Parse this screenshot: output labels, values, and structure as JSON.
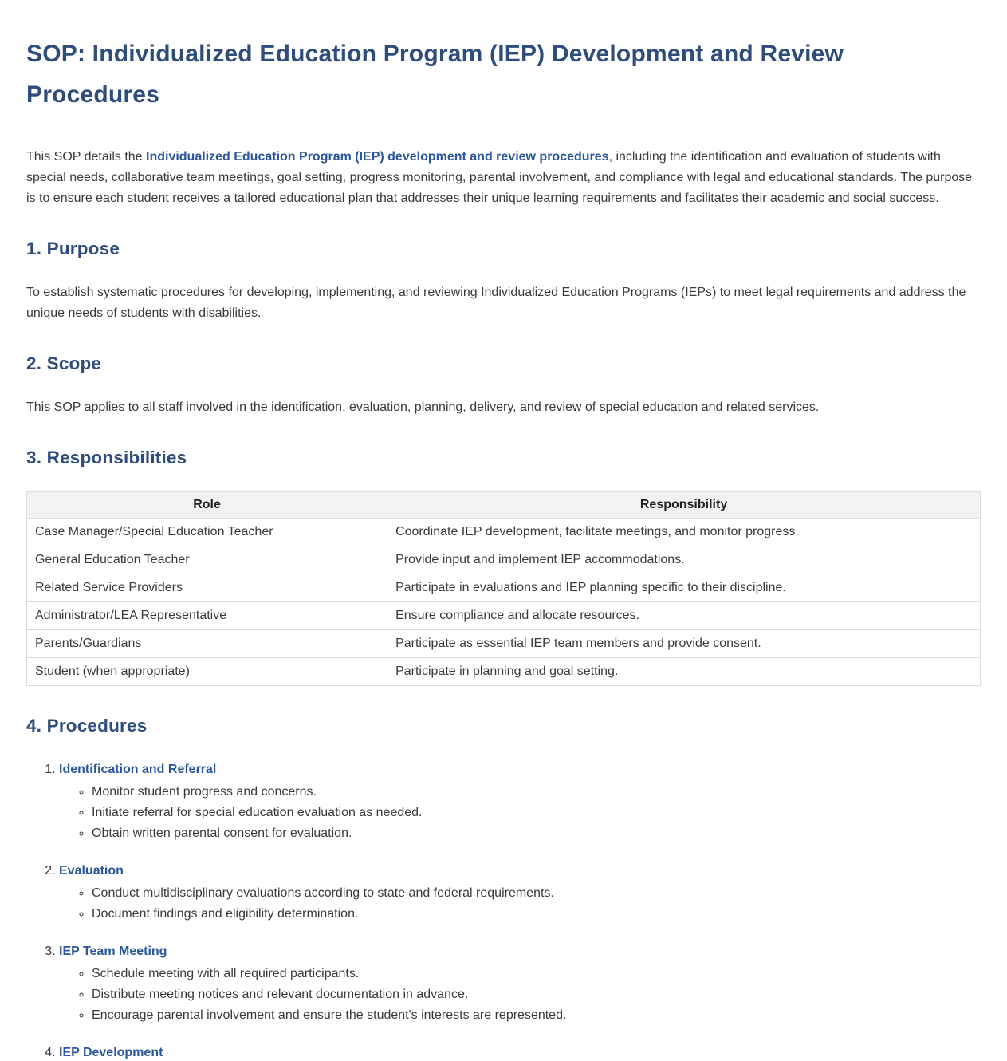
{
  "page": {
    "title": "SOP: Individualized Education Program (IEP) Development and Review Procedures"
  },
  "intro": {
    "before": "This SOP details the ",
    "strong": "Individualized Education Program (IEP) development and review procedures",
    "after": ", including the identification and evaluation of students with special needs, collaborative team meetings, goal setting, progress monitoring, parental involvement, and compliance with legal and educational standards. The purpose is to ensure each student receives a tailored educational plan that addresses their unique learning requirements and facilitates their academic and social success."
  },
  "sections": {
    "purpose": {
      "heading": "1. Purpose",
      "body": "To establish systematic procedures for developing, implementing, and reviewing Individualized Education Programs (IEPs) to meet legal requirements and address the unique needs of students with disabilities."
    },
    "scope": {
      "heading": "2. Scope",
      "body": "This SOP applies to all staff involved in the identification, evaluation, planning, delivery, and review of special education and related services."
    },
    "responsibilities": {
      "heading": "3. Responsibilities",
      "table": {
        "headers": [
          "Role",
          "Responsibility"
        ],
        "rows": [
          {
            "role": "Case Manager/Special Education Teacher",
            "responsibility": "Coordinate IEP development, facilitate meetings, and monitor progress."
          },
          {
            "role": "General Education Teacher",
            "responsibility": "Provide input and implement IEP accommodations."
          },
          {
            "role": "Related Service Providers",
            "responsibility": "Participate in evaluations and IEP planning specific to their discipline."
          },
          {
            "role": "Administrator/LEA Representative",
            "responsibility": "Ensure compliance and allocate resources."
          },
          {
            "role": "Parents/Guardians",
            "responsibility": "Participate as essential IEP team members and provide consent."
          },
          {
            "role": "Student (when appropriate)",
            "responsibility": "Participate in planning and goal setting."
          }
        ]
      }
    },
    "procedures": {
      "heading": "4. Procedures",
      "steps": [
        {
          "title": "Identification and Referral",
          "bullets": [
            "Monitor student progress and concerns.",
            "Initiate referral for special education evaluation as needed.",
            "Obtain written parental consent for evaluation."
          ]
        },
        {
          "title": "Evaluation",
          "bullets": [
            "Conduct multidisciplinary evaluations according to state and federal requirements.",
            "Document findings and eligibility determination."
          ]
        },
        {
          "title": "IEP Team Meeting",
          "bullets": [
            "Schedule meeting with all required participants.",
            "Distribute meeting notices and relevant documentation in advance.",
            "Encourage parental involvement and ensure the student's interests are represented."
          ]
        },
        {
          "title": "IEP Development",
          "bullets": []
        }
      ]
    }
  },
  "colors": {
    "heading_navy": "#2e4d7b",
    "accent_blue": "#2b579a",
    "body_text": "#3a3a3a",
    "table_border": "#dddddd",
    "table_header_bg": "#f2f2f2"
  }
}
